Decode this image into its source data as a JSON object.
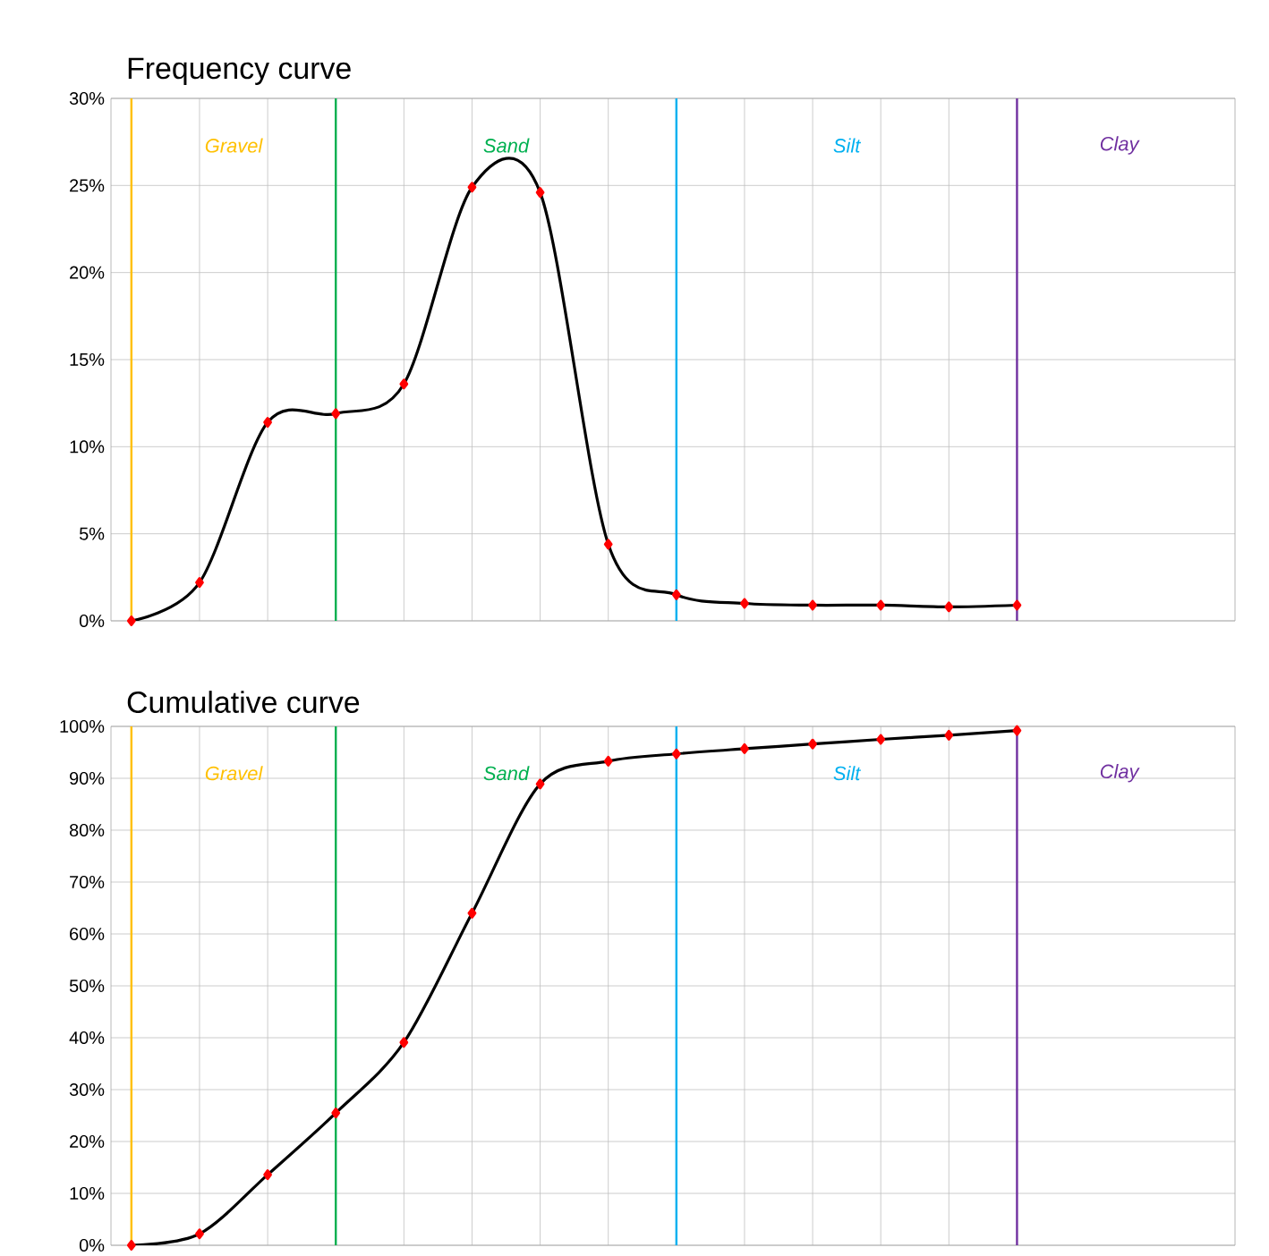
{
  "chart_data": [
    {
      "type": "line",
      "title": "Frequency curve",
      "categories": [
        null,
        null,
        null,
        null,
        null,
        null,
        null,
        null,
        null,
        null,
        null,
        null,
        null,
        null
      ],
      "series": [
        {
          "color": "#000000",
          "values": [
            0,
            2.2,
            11.4,
            11.9,
            13.6,
            24.9,
            24.6,
            4.4,
            1.5,
            1.0,
            0.9,
            0.9,
            0.8,
            0.9
          ]
        }
      ],
      "ylim": [
        0,
        30
      ],
      "yticks": [
        {
          "value": 0,
          "label": "0%"
        },
        {
          "value": 5,
          "label": "5%"
        },
        {
          "value": 10,
          "label": "10%"
        },
        {
          "value": 15,
          "label": "15%"
        },
        {
          "value": 20,
          "label": "20%"
        },
        {
          "value": 25,
          "label": "25%"
        },
        {
          "value": 30,
          "label": "30%"
        }
      ],
      "grid": true,
      "tick_labels": "y",
      "marker": "diamond",
      "line_style": "solid",
      "annotations": [
        "Gravel",
        "Sand",
        "Silt",
        "Clay"
      ]
    },
    {
      "type": "line",
      "title": "Cumulative curve",
      "categories": [
        null,
        null,
        null,
        null,
        null,
        null,
        null,
        null,
        null,
        null,
        null,
        null,
        null,
        null
      ],
      "series": [
        {
          "color": "#000000",
          "values": [
            0,
            2.2,
            13.6,
            25.5,
            39.1,
            64.0,
            88.9,
            93.3,
            94.7,
            95.7,
            96.6,
            97.5,
            98.3,
            99.2
          ]
        }
      ],
      "ylim": [
        0,
        100
      ],
      "yticks": [
        {
          "value": 0,
          "label": "0%"
        },
        {
          "value": 10,
          "label": "10%"
        },
        {
          "value": 20,
          "label": "20%"
        },
        {
          "value": 30,
          "label": "30%"
        },
        {
          "value": 40,
          "label": "40%"
        },
        {
          "value": 50,
          "label": "50%"
        },
        {
          "value": 60,
          "label": "60%"
        },
        {
          "value": 70,
          "label": "70%"
        },
        {
          "value": 80,
          "label": "80%"
        },
        {
          "value": 90,
          "label": "90%"
        },
        {
          "value": 100,
          "label": "100%"
        }
      ],
      "grid": true,
      "tick_labels": "y",
      "marker": "diamond",
      "line_style": "solid",
      "annotations": [
        "Gravel",
        "Sand",
        "Silt",
        "Clay"
      ]
    }
  ]
}
